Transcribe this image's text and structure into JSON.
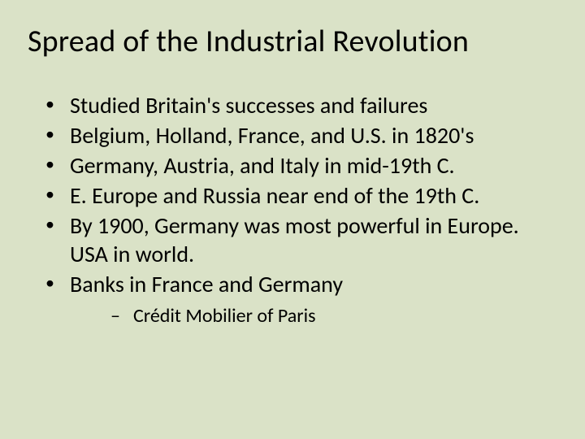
{
  "slide": {
    "background_color": "#dae2c7",
    "text_color": "#000000",
    "font_family": "Calibri",
    "title": "Spread of the Industrial Revolution",
    "title_fontsize": 38,
    "body_fontsize": 28,
    "sub_fontsize": 24,
    "bullets": [
      {
        "text": "Studied Britain's successes and failures"
      },
      {
        "text": "Belgium, Holland, France, and U.S. in 1820's"
      },
      {
        "text": "Germany, Austria, and Italy in mid-19th C."
      },
      {
        "text": "E. Europe and Russia near end of the 19th C."
      },
      {
        "text": "By 1900, Germany was most powerful in Europe. USA in world."
      },
      {
        "text": "Banks in France and Germany",
        "sub": [
          {
            "text": "Crédit Mobilier of Paris"
          }
        ]
      }
    ]
  }
}
